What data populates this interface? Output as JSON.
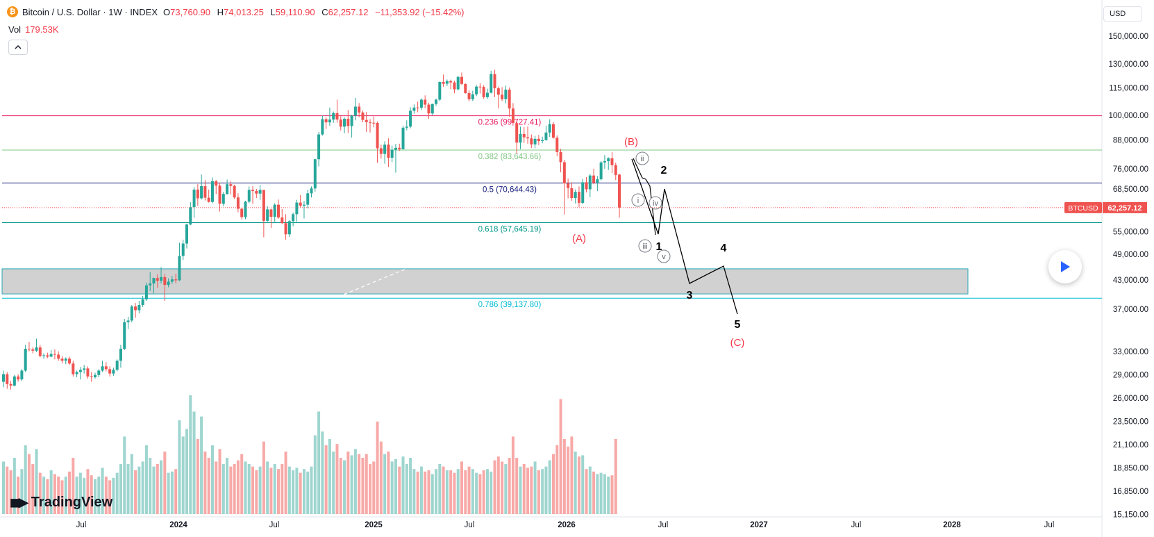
{
  "header": {
    "symbol_title": "Bitcoin / U.S. Dollar · 1W · INDEX",
    "open_label": "O",
    "open_value": "73,760.90",
    "high_label": "H",
    "high_value": "74,013.25",
    "low_label": "L",
    "low_value": "59,110.90",
    "close_label": "C",
    "close_value": "62,257.12",
    "change_value": "−11,353.92 (−15.42%)",
    "coin_glyph": "₿"
  },
  "volume": {
    "label": "Vol",
    "value": "179.53K"
  },
  "collapse_icon": "chevron-up-icon",
  "currency_label": "USD",
  "price_tag": {
    "symbol": "BTCUSD",
    "value": "62,257.12"
  },
  "branding": {
    "name": "TradingView"
  },
  "chart_data": {
    "type": "candlestick",
    "interval": "1W",
    "price_axis_labels": [
      "150,000.00",
      "130,000.00",
      "115,000.00",
      "100,000.00",
      "88,000.00",
      "76,000.00",
      "68,500.00",
      "62,257.12",
      "55,000.00",
      "49,000.00",
      "43,000.00",
      "37,000.00",
      "33,000.00",
      "29,000.00",
      "26,000.00",
      "23,500.00",
      "21,100.00",
      "18,850.00",
      "16,850.00",
      "15,150.00"
    ],
    "time_axis_labels": [
      "Jul",
      "2024",
      "Jul",
      "2025",
      "Jul",
      "2026",
      "Jul",
      "2027",
      "Jul",
      "2028",
      "Jul"
    ],
    "fib_levels": [
      {
        "ratio": "0.236",
        "value": "99,727.41",
        "label": "0.236 (99,727.41)",
        "color": "#e91e63"
      },
      {
        "ratio": "0.382",
        "value": "83,643.66",
        "label": "0.382 (83,643.66)",
        "color": "#81c784"
      },
      {
        "ratio": "0.5",
        "value": "70,644.43",
        "label": "0.5 (70,644.43)",
        "color": "#1a237e"
      },
      {
        "ratio": "0.618",
        "value": "57,645.19",
        "label": "0.618 (57,645.19)",
        "color": "#009688"
      },
      {
        "ratio": "0.786",
        "value": "39,137.80",
        "label": "0.786 (39,137.80)",
        "color": "#00bcd4"
      }
    ],
    "zone": {
      "from": 40000,
      "to": 45500
    },
    "wave_labels": {
      "major": [
        "(A)",
        "(B)",
        "(C)"
      ],
      "minor": [
        "i",
        "ii",
        "iii",
        "iv",
        "v"
      ],
      "projection": [
        "1",
        "2",
        "3",
        "4",
        "5"
      ]
    },
    "candles": [
      [
        25500,
        27000,
        24800,
        26500
      ],
      [
        26500,
        26800,
        24600,
        25200
      ],
      [
        25200,
        25600,
        24500,
        25000
      ],
      [
        25000,
        26400,
        24900,
        26200
      ],
      [
        26200,
        26500,
        25500,
        25800
      ],
      [
        25800,
        27200,
        25600,
        27000
      ],
      [
        27000,
        30800,
        26800,
        30200
      ],
      [
        30200,
        31300,
        29800,
        30100
      ],
      [
        30100,
        30400,
        29500,
        29900
      ],
      [
        29900,
        31800,
        29700,
        30400
      ],
      [
        30400,
        30800,
        28900,
        29100
      ],
      [
        29100,
        29500,
        28700,
        29200
      ],
      [
        29200,
        29600,
        28800,
        29000
      ],
      [
        29000,
        30000,
        28900,
        29400
      ],
      [
        29400,
        30100,
        28600,
        29300
      ],
      [
        29300,
        29800,
        28400,
        28700
      ],
      [
        28700,
        29100,
        28000,
        28400
      ],
      [
        28400,
        28900,
        27900,
        28700
      ],
      [
        28700,
        29000,
        27800,
        28000
      ],
      [
        28000,
        28400,
        26200,
        26500
      ],
      [
        26500,
        27000,
        26100,
        26800
      ],
      [
        26800,
        27500,
        25800,
        27100
      ],
      [
        27100,
        27800,
        26600,
        27300
      ],
      [
        27300,
        27600,
        25900,
        26200
      ],
      [
        26200,
        26800,
        25500,
        26100
      ],
      [
        26100,
        26700,
        25900,
        26400
      ],
      [
        26400,
        27200,
        26100,
        27000
      ],
      [
        27000,
        28400,
        26800,
        27600
      ],
      [
        27600,
        28200,
        26900,
        27200
      ],
      [
        27200,
        27600,
        26200,
        26600
      ],
      [
        26600,
        27400,
        26300,
        27100
      ],
      [
        27100,
        28600,
        26900,
        28400
      ],
      [
        28400,
        30800,
        27400,
        30200
      ],
      [
        30200,
        35200,
        30000,
        34600
      ],
      [
        34600,
        35600,
        33400,
        34900
      ],
      [
        34900,
        37800,
        34600,
        37500
      ],
      [
        37500,
        38200,
        35400,
        36800
      ],
      [
        36800,
        38600,
        36200,
        37800
      ],
      [
        37800,
        39600,
        37400,
        38900
      ],
      [
        38900,
        42400,
        38600,
        41800
      ],
      [
        41800,
        44700,
        40600,
        42200
      ],
      [
        42200,
        43500,
        40100,
        43400
      ],
      [
        43400,
        44200,
        41300,
        42800
      ],
      [
        42800,
        45900,
        42200,
        43600
      ],
      [
        43600,
        44300,
        38600,
        41900
      ],
      [
        41900,
        43300,
        41400,
        42600
      ],
      [
        42600,
        43900,
        42100,
        43100
      ],
      [
        43100,
        44400,
        42300,
        42900
      ],
      [
        42900,
        52000,
        42700,
        48600
      ],
      [
        48600,
        52800,
        47600,
        51800
      ],
      [
        51800,
        57400,
        50500,
        57100
      ],
      [
        57100,
        64000,
        56900,
        62400
      ],
      [
        62400,
        69200,
        59100,
        68300
      ],
      [
        68300,
        70200,
        62800,
        65300
      ],
      [
        65300,
        73800,
        64900,
        69500
      ],
      [
        69500,
        71700,
        64600,
        65500
      ],
      [
        65500,
        68300,
        63900,
        64100
      ],
      [
        64100,
        72700,
        63700,
        71300
      ],
      [
        71300,
        71700,
        66700,
        69700
      ],
      [
        69700,
        70800,
        61000,
        63500
      ],
      [
        63500,
        67500,
        62800,
        66800
      ],
      [
        66800,
        71900,
        66500,
        70200
      ],
      [
        70200,
        71200,
        66600,
        69600
      ],
      [
        69600,
        70000,
        65100,
        65600
      ],
      [
        65600,
        67000,
        60800,
        61900
      ],
      [
        61900,
        62200,
        58600,
        59300
      ],
      [
        59300,
        64500,
        58700,
        64200
      ],
      [
        64200,
        69400,
        63700,
        68200
      ],
      [
        68200,
        69500,
        63500,
        67800
      ],
      [
        67800,
        68500,
        65400,
        66900
      ],
      [
        66900,
        70000,
        64800,
        68200
      ],
      [
        68200,
        68200,
        53500,
        58200
      ],
      [
        58200,
        62700,
        57900,
        61700
      ],
      [
        61700,
        61900,
        56100,
        59400
      ],
      [
        59400,
        63700,
        57900,
        63200
      ],
      [
        63200,
        64900,
        58800,
        59200
      ],
      [
        59200,
        61800,
        57200,
        57500
      ],
      [
        57500,
        60200,
        52800,
        54300
      ],
      [
        54300,
        58400,
        53600,
        58100
      ],
      [
        58100,
        60700,
        56600,
        60200
      ],
      [
        60200,
        64800,
        57900,
        63900
      ],
      [
        63900,
        66400,
        62300,
        62900
      ],
      [
        62900,
        64400,
        58900,
        63200
      ],
      [
        63200,
        68200,
        62000,
        67000
      ],
      [
        67000,
        69400,
        65600,
        68700
      ],
      [
        68700,
        80000,
        67600,
        79800
      ],
      [
        79800,
        91800,
        76900,
        90600
      ],
      [
        90600,
        99800,
        90100,
        98000
      ],
      [
        98000,
        98900,
        93200,
        96400
      ],
      [
        96400,
        104000,
        94700,
        97800
      ],
      [
        97800,
        101900,
        96200,
        101100
      ],
      [
        101100,
        108300,
        96200,
        97800
      ],
      [
        97800,
        99500,
        92500,
        94300
      ],
      [
        94300,
        98900,
        91200,
        98200
      ],
      [
        98200,
        102700,
        91300,
        94600
      ],
      [
        94600,
        100200,
        89200,
        99800
      ],
      [
        99800,
        109300,
        97400,
        104500
      ],
      [
        104500,
        106400,
        98900,
        101400
      ],
      [
        101400,
        102400,
        96400,
        97600
      ],
      [
        97600,
        101700,
        91800,
        96500
      ],
      [
        96500,
        98000,
        91500,
        96200
      ],
      [
        96200,
        99400,
        94000,
        96100
      ],
      [
        96100,
        96800,
        78300,
        84400
      ],
      [
        84400,
        86000,
        80000,
        82000
      ],
      [
        82000,
        87500,
        78000,
        86000
      ],
      [
        86000,
        88800,
        76700,
        80400
      ],
      [
        80400,
        85600,
        78600,
        83800
      ],
      [
        83800,
        86300,
        74500,
        84600
      ],
      [
        84600,
        86400,
        83200,
        84000
      ],
      [
        84000,
        94700,
        83900,
        93800
      ],
      [
        93800,
        97400,
        92600,
        94300
      ],
      [
        94300,
        104100,
        93500,
        102300
      ],
      [
        102300,
        105700,
        100800,
        104000
      ],
      [
        104000,
        107200,
        101500,
        103900
      ],
      [
        103900,
        109000,
        102700,
        108300
      ],
      [
        108300,
        110700,
        103600,
        105600
      ],
      [
        105600,
        106600,
        98200,
        100900
      ],
      [
        100900,
        106100,
        100100,
        105900
      ],
      [
        105900,
        108900,
        104900,
        108300
      ],
      [
        108300,
        118800,
        107600,
        118600
      ],
      [
        118600,
        123200,
        115700,
        117500
      ],
      [
        117500,
        120100,
        116100,
        119100
      ],
      [
        119100,
        120000,
        114300,
        118300
      ],
      [
        118300,
        119400,
        111900,
        114200
      ],
      [
        114200,
        122300,
        113500,
        121700
      ],
      [
        121700,
        124500,
        116900,
        117400
      ],
      [
        117400,
        117700,
        111700,
        112000
      ],
      [
        112000,
        113600,
        107300,
        108500
      ],
      [
        108500,
        113400,
        107500,
        111300
      ],
      [
        111300,
        116700,
        110300,
        115800
      ],
      [
        115800,
        117900,
        111800,
        115600
      ],
      [
        115600,
        116700,
        108700,
        109700
      ],
      [
        109700,
        114600,
        108700,
        112200
      ],
      [
        112200,
        125600,
        111800,
        123500
      ],
      [
        123500,
        126200,
        109700,
        114800
      ],
      [
        114800,
        115900,
        103500,
        111100
      ],
      [
        111100,
        115500,
        107500,
        108600
      ],
      [
        108600,
        116400,
        106300,
        114000
      ],
      [
        114000,
        115300,
        99200,
        103500
      ],
      [
        103500,
        106400,
        95900,
        96000
      ],
      [
        96000,
        96700,
        82100,
        86900
      ],
      [
        86900,
        94300,
        84000,
        90800
      ],
      [
        90800,
        94100,
        86800,
        89300
      ],
      [
        89300,
        94400,
        86400,
        88800
      ],
      [
        88800,
        90600,
        84500,
        86100
      ],
      [
        86100,
        90000,
        84400,
        88600
      ],
      [
        88600,
        90400,
        85800,
        87600
      ],
      [
        87600,
        89600,
        86600,
        88000
      ],
      [
        88000,
        94800,
        87800,
        91500
      ],
      [
        91500,
        97900,
        89500,
        95500
      ],
      [
        95500,
        96500,
        88700,
        89100
      ],
      [
        89100,
        90200,
        81000,
        82800
      ],
      [
        82800,
        84200,
        74600,
        78600
      ],
      [
        78600,
        79500,
        60100,
        70500
      ],
      [
        70500,
        72300,
        65300,
        68800
      ],
      [
        68800,
        70900,
        64500,
        65400
      ],
      [
        65400,
        68300,
        63600,
        67500
      ],
      [
        67500,
        69400,
        62500,
        63800
      ],
      [
        63800,
        72200,
        63400,
        70900
      ],
      [
        70900,
        72800,
        67300,
        68400
      ],
      [
        68400,
        74000,
        65700,
        73400
      ],
      [
        73400,
        76000,
        70200,
        70700
      ],
      [
        70700,
        73200,
        67800,
        72000
      ],
      [
        72000,
        79000,
        71600,
        78500
      ],
      [
        78500,
        81500,
        76000,
        79000
      ],
      [
        79000,
        80600,
        75500,
        80200
      ],
      [
        80200,
        82800,
        74300,
        77400
      ],
      [
        77400,
        78400,
        71700,
        73600
      ],
      [
        73760.9,
        74013.25,
        59110.9,
        62257.12
      ]
    ],
    "volume_bars": [
      0.42,
      0.38,
      0.35,
      0.45,
      0.3,
      0.36,
      0.55,
      0.48,
      0.4,
      0.52,
      0.33,
      0.3,
      0.28,
      0.35,
      0.32,
      0.3,
      0.27,
      0.3,
      0.34,
      0.45,
      0.3,
      0.33,
      0.29,
      0.36,
      0.31,
      0.28,
      0.3,
      0.37,
      0.3,
      0.27,
      0.29,
      0.33,
      0.4,
      0.62,
      0.4,
      0.48,
      0.35,
      0.38,
      0.42,
      0.55,
      0.45,
      0.38,
      0.4,
      0.43,
      0.5,
      0.33,
      0.34,
      0.36,
      0.75,
      0.62,
      0.68,
      0.95,
      0.82,
      0.6,
      0.78,
      0.5,
      0.45,
      0.55,
      0.42,
      0.52,
      0.4,
      0.45,
      0.38,
      0.4,
      0.43,
      0.48,
      0.42,
      0.4,
      0.38,
      0.35,
      0.38,
      0.58,
      0.42,
      0.37,
      0.4,
      0.36,
      0.4,
      0.5,
      0.38,
      0.35,
      0.37,
      0.33,
      0.36,
      0.34,
      0.38,
      0.63,
      0.82,
      0.66,
      0.55,
      0.6,
      0.5,
      0.56,
      0.45,
      0.43,
      0.5,
      0.47,
      0.52,
      0.48,
      0.45,
      0.48,
      0.4,
      0.42,
      0.74,
      0.58,
      0.48,
      0.5,
      0.42,
      0.44,
      0.38,
      0.46,
      0.4,
      0.45,
      0.36,
      0.34,
      0.38,
      0.34,
      0.35,
      0.32,
      0.36,
      0.4,
      0.38,
      0.35,
      0.35,
      0.33,
      0.36,
      0.42,
      0.35,
      0.38,
      0.36,
      0.33,
      0.32,
      0.35,
      0.36,
      0.34,
      0.43,
      0.46,
      0.42,
      0.4,
      0.45,
      0.62,
      0.45,
      0.38,
      0.4,
      0.37,
      0.38,
      0.42,
      0.35,
      0.36,
      0.38,
      0.43,
      0.48,
      0.55,
      0.92,
      0.6,
      0.54,
      0.62,
      0.5,
      0.46,
      0.47,
      0.36,
      0.38,
      0.34,
      0.32,
      0.33,
      0.32,
      0.3,
      0.31,
      0.6
    ]
  }
}
